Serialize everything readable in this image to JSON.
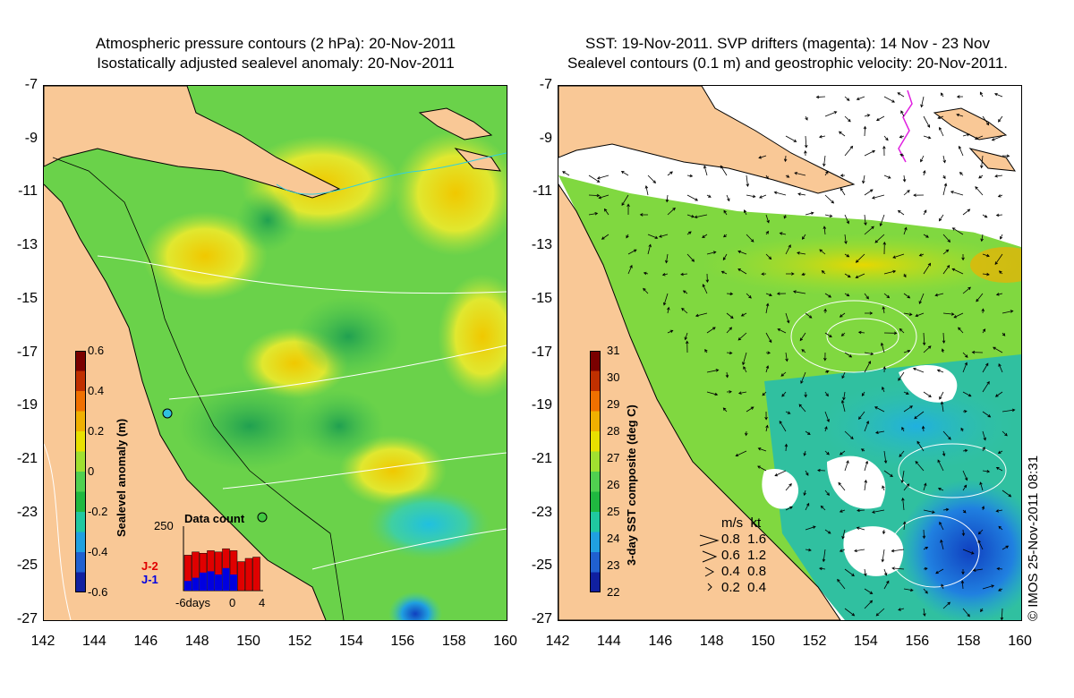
{
  "left_title": {
    "line1": "Atmospheric pressure contours (2 hPa): 20-Nov-2011",
    "line2": "Isostatically adjusted sealevel anomaly: 20-Nov-2011"
  },
  "right_title": {
    "line1": "SST: 19-Nov-2011. SVP drifters (magenta): 14 Nov - 23 Nov",
    "line2": "Sealevel contours (0.1 m) and geostrophic velocity: 20-Nov-2011."
  },
  "axes": {
    "y_ticks": [
      "-7",
      "-9",
      "-11",
      "-13",
      "-15",
      "-17",
      "-19",
      "-21",
      "-23",
      "-25",
      "-27"
    ],
    "x_ticks": [
      "142",
      "144",
      "146",
      "148",
      "150",
      "152",
      "154",
      "156",
      "158",
      "160"
    ]
  },
  "left_colorbar": {
    "title": "Sealevel anomaly (m)",
    "labels": [
      "0.6",
      "0.4",
      "0.2",
      "0",
      "-0.2",
      "-0.4",
      "-0.6"
    ],
    "colors": [
      "#7a0000",
      "#c03000",
      "#f07000",
      "#f0b000",
      "#e8e000",
      "#a0e030",
      "#50d050",
      "#20b840",
      "#20c8a0",
      "#20a0e0",
      "#2060d0",
      "#1020a0"
    ]
  },
  "data_count_inset": {
    "title": "Data count",
    "max_label": "250",
    "x_labels": [
      "-6days",
      "0",
      "4"
    ],
    "series_j2": "J-2",
    "series_j1": "J-1",
    "j2_color": "#e00000",
    "j1_color": "#0000e0",
    "j2_values": [
      0.55,
      0.6,
      0.58,
      0.62,
      0.6,
      0.65,
      0.62,
      0.45,
      0.5,
      0.52
    ],
    "j1_values": [
      0.15,
      0.2,
      0.28,
      0.3,
      0.25,
      0.35,
      0.25,
      0,
      0,
      0
    ]
  },
  "right_colorbar": {
    "title": "3-day SST composite (deg C)",
    "labels": [
      "31",
      "30",
      "29",
      "28",
      "27",
      "26",
      "25",
      "24",
      "23",
      "22"
    ],
    "colors": [
      "#7a0000",
      "#c03000",
      "#f07000",
      "#f0b000",
      "#e8e000",
      "#a0e030",
      "#50d050",
      "#20b840",
      "#20c8a0",
      "#20a0e0",
      "#2060d0",
      "#1020a0"
    ]
  },
  "velocity_legend": {
    "header": "m/s  kt",
    "rows": [
      "0.8  1.6",
      "0.6  1.2",
      "0.4  0.8",
      "0.2  0.4"
    ]
  },
  "stamp": "© IMOS 25-Nov-2011 08:31",
  "colors": {
    "land": "#f9c896",
    "ocean_green": "#60d050",
    "contour_white": "#ffffff",
    "coast": "#000000"
  }
}
